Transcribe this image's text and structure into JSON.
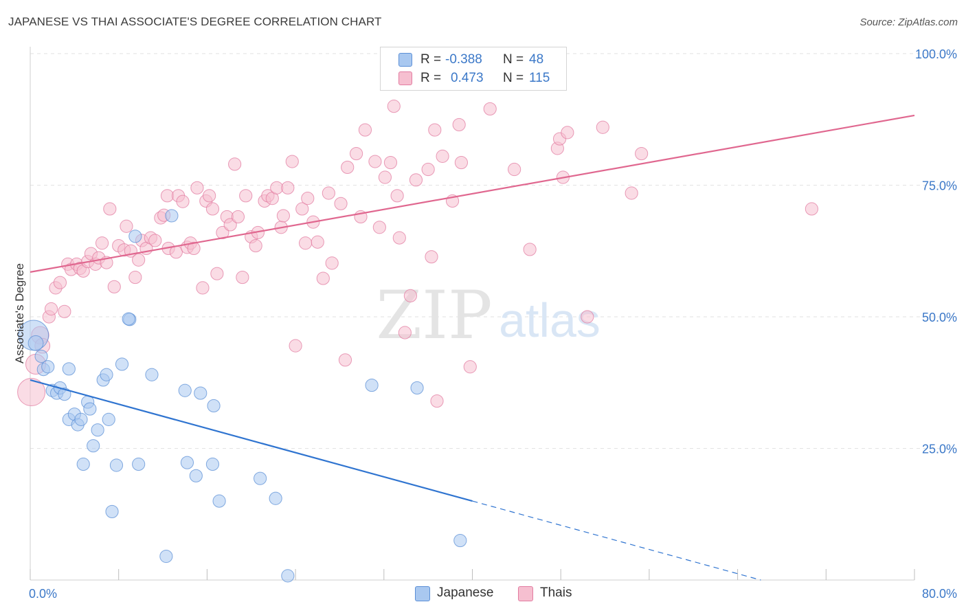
{
  "title": "JAPANESE VS THAI ASSOCIATE'S DEGREE CORRELATION CHART",
  "source": "Source: ZipAtlas.com",
  "watermark": {
    "zip": "ZIP",
    "atlas": "atlas"
  },
  "legend": {
    "rows": [
      {
        "r_label": "R =",
        "r_value": "-0.388",
        "n_label": "N =",
        "n_value": "48",
        "color": "#a9c8f0",
        "border": "#5b8fd6"
      },
      {
        "r_label": "R =",
        "r_value": "0.473",
        "n_label": "N =",
        "n_value": "115",
        "color": "#f6bfd0",
        "border": "#e27ba0"
      }
    ]
  },
  "bottom_legend": [
    {
      "label": "Japanese",
      "color": "#a9c8f0",
      "border": "#5b8fd6"
    },
    {
      "label": "Thais",
      "color": "#f6bfd0",
      "border": "#e27ba0"
    }
  ],
  "chart_data": {
    "type": "scatter",
    "title": "JAPANESE VS THAI ASSOCIATE'S DEGREE CORRELATION CHART",
    "xlabel": "",
    "ylabel": "Associate's Degree",
    "xlim": [
      0,
      80
    ],
    "ylim": [
      0,
      100
    ],
    "x_tick_labels": [
      {
        "value": 0,
        "label": "0.0%"
      },
      {
        "value": 80,
        "label": "80.0%"
      }
    ],
    "y_tick_labels": [
      {
        "value": 25,
        "label": "25.0%"
      },
      {
        "value": 50,
        "label": "50.0%"
      },
      {
        "value": 75,
        "label": "75.0%"
      },
      {
        "value": 100,
        "label": "100.0%"
      }
    ],
    "grid": true,
    "series": [
      {
        "name": "Japanese",
        "color": "#5b8fd6",
        "fill": "#a9c8f0",
        "points": [
          [
            0.3,
            46.5,
            24
          ],
          [
            0.5,
            45,
            12
          ],
          [
            1.0,
            42.5,
            10
          ],
          [
            1.2,
            40,
            10
          ],
          [
            1.6,
            40.5,
            10
          ],
          [
            2.0,
            36,
            10
          ],
          [
            2.4,
            35.5,
            10
          ],
          [
            2.7,
            36.5,
            10
          ],
          [
            3.1,
            35.3,
            10
          ],
          [
            3.5,
            40.1,
            10
          ],
          [
            3.5,
            30.5,
            10
          ],
          [
            4.0,
            31.5,
            10
          ],
          [
            4.3,
            29.5,
            10
          ],
          [
            4.6,
            30.5,
            10
          ],
          [
            4.8,
            22.0,
            10
          ],
          [
            5.2,
            33.8,
            10
          ],
          [
            5.4,
            32.5,
            10
          ],
          [
            5.7,
            25.5,
            10
          ],
          [
            6.1,
            28.5,
            10
          ],
          [
            6.6,
            38.0,
            10
          ],
          [
            6.9,
            39.0,
            10
          ],
          [
            7.1,
            30.5,
            10
          ],
          [
            7.4,
            13.0,
            10
          ],
          [
            7.8,
            21.8,
            10
          ],
          [
            8.3,
            41.0,
            10
          ],
          [
            9.0,
            49.5,
            10
          ],
          [
            8.9,
            49.6,
            10
          ],
          [
            9.5,
            65.3,
            10
          ],
          [
            9.8,
            22.0,
            10
          ],
          [
            11.0,
            39.0,
            10
          ],
          [
            12.3,
            4.5,
            10
          ],
          [
            12.8,
            69.2,
            10
          ],
          [
            14.0,
            36.0,
            10
          ],
          [
            14.2,
            22.3,
            10
          ],
          [
            15.0,
            19.8,
            10
          ],
          [
            15.4,
            35.5,
            10
          ],
          [
            16.5,
            22.0,
            10
          ],
          [
            16.6,
            33.1,
            10
          ],
          [
            17.1,
            15.0,
            10
          ],
          [
            20.8,
            19.3,
            10
          ],
          [
            22.2,
            15.5,
            10
          ],
          [
            23.3,
            0.8,
            10
          ],
          [
            30.9,
            37.0,
            10
          ],
          [
            35.0,
            36.5,
            10
          ],
          [
            38.9,
            7.5,
            10
          ]
        ]
      },
      {
        "name": "Thais",
        "color": "#e27ba0",
        "fill": "#f6bfd0",
        "points": [
          [
            0.1,
            35.7,
            22
          ],
          [
            0.5,
            41.0,
            16
          ],
          [
            0.9,
            46.5,
            14
          ],
          [
            1.1,
            44.5,
            12
          ],
          [
            1.7,
            50.0,
            10
          ],
          [
            1.9,
            51.5,
            10
          ],
          [
            2.3,
            55.5,
            10
          ],
          [
            2.7,
            56.5,
            10
          ],
          [
            3.1,
            51.0,
            10
          ],
          [
            3.4,
            60.0,
            10
          ],
          [
            3.7,
            59.0,
            10
          ],
          [
            4.2,
            60.0,
            10
          ],
          [
            4.5,
            59.2,
            10
          ],
          [
            4.8,
            58.7,
            10
          ],
          [
            5.2,
            60.5,
            10
          ],
          [
            5.5,
            62.0,
            10
          ],
          [
            5.9,
            60.0,
            10
          ],
          [
            6.2,
            61.2,
            10
          ],
          [
            6.5,
            64.0,
            10
          ],
          [
            6.9,
            60.3,
            10
          ],
          [
            7.2,
            70.5,
            10
          ],
          [
            7.6,
            55.7,
            10
          ],
          [
            8.0,
            63.5,
            10
          ],
          [
            8.5,
            62.7,
            10
          ],
          [
            8.7,
            67.2,
            10
          ],
          [
            9.1,
            62.5,
            10
          ],
          [
            9.5,
            57.5,
            10
          ],
          [
            9.8,
            60.8,
            10
          ],
          [
            10.1,
            64.5,
            10
          ],
          [
            10.5,
            63.0,
            10
          ],
          [
            10.9,
            65.0,
            10
          ],
          [
            11.3,
            64.5,
            10
          ],
          [
            11.8,
            68.8,
            10
          ],
          [
            12.1,
            69.3,
            10
          ],
          [
            12.5,
            63.0,
            10
          ],
          [
            12.4,
            73.0,
            10
          ],
          [
            13.2,
            62.3,
            10
          ],
          [
            13.4,
            73.0,
            10
          ],
          [
            13.8,
            71.9,
            10
          ],
          [
            14.2,
            63.2,
            10
          ],
          [
            14.5,
            64.0,
            10
          ],
          [
            14.8,
            63.0,
            10
          ],
          [
            15.1,
            74.5,
            10
          ],
          [
            15.6,
            55.5,
            10
          ],
          [
            15.9,
            72.0,
            10
          ],
          [
            16.2,
            73.0,
            10
          ],
          [
            16.5,
            70.5,
            10
          ],
          [
            16.9,
            58.2,
            10
          ],
          [
            17.4,
            66.0,
            10
          ],
          [
            17.8,
            69.0,
            10
          ],
          [
            18.1,
            67.5,
            10
          ],
          [
            18.5,
            79.0,
            10
          ],
          [
            18.8,
            69.0,
            10
          ],
          [
            19.2,
            57.5,
            10
          ],
          [
            19.5,
            73.0,
            10
          ],
          [
            20.0,
            65.2,
            10
          ],
          [
            20.4,
            63.5,
            10
          ],
          [
            20.6,
            66.0,
            10
          ],
          [
            21.2,
            72.0,
            10
          ],
          [
            21.5,
            73.0,
            10
          ],
          [
            21.9,
            72.5,
            10
          ],
          [
            22.3,
            74.5,
            10
          ],
          [
            22.7,
            67.0,
            10
          ],
          [
            22.9,
            69.2,
            10
          ],
          [
            23.3,
            74.5,
            10
          ],
          [
            23.7,
            79.5,
            10
          ],
          [
            24.0,
            44.5,
            10
          ],
          [
            24.6,
            70.5,
            10
          ],
          [
            24.9,
            64.0,
            10
          ],
          [
            25.1,
            72.5,
            10
          ],
          [
            25.6,
            68.0,
            10
          ],
          [
            26.0,
            64.2,
            10
          ],
          [
            26.5,
            57.3,
            10
          ],
          [
            27.0,
            73.5,
            10
          ],
          [
            27.3,
            60.2,
            10
          ],
          [
            28.1,
            71.5,
            10
          ],
          [
            28.5,
            41.8,
            10
          ],
          [
            28.7,
            78.4,
            10
          ],
          [
            29.5,
            81.0,
            10
          ],
          [
            29.9,
            69.0,
            10
          ],
          [
            30.3,
            85.5,
            10
          ],
          [
            31.2,
            79.5,
            10
          ],
          [
            31.6,
            67.0,
            10
          ],
          [
            32.1,
            76.5,
            10
          ],
          [
            32.6,
            79.3,
            10
          ],
          [
            32.9,
            90.0,
            10
          ],
          [
            33.2,
            73.0,
            10
          ],
          [
            33.4,
            65.0,
            10
          ],
          [
            33.9,
            47.0,
            10
          ],
          [
            34.4,
            54.0,
            10
          ],
          [
            34.9,
            76.0,
            10
          ],
          [
            36.0,
            78.0,
            10
          ],
          [
            36.3,
            61.4,
            10
          ],
          [
            36.6,
            85.5,
            10
          ],
          [
            36.8,
            34.0,
            10
          ],
          [
            37.3,
            80.5,
            10
          ],
          [
            38.2,
            72.0,
            10
          ],
          [
            38.8,
            86.5,
            10
          ],
          [
            39.0,
            79.3,
            10
          ],
          [
            39.8,
            40.5,
            10
          ],
          [
            41.6,
            89.5,
            10
          ],
          [
            43.8,
            78.0,
            10
          ],
          [
            45.2,
            62.8,
            10
          ],
          [
            47.7,
            82.0,
            10
          ],
          [
            47.9,
            83.8,
            10
          ],
          [
            48.2,
            76.5,
            10
          ],
          [
            48.6,
            85.0,
            10
          ],
          [
            50.4,
            50.0,
            10
          ],
          [
            51.8,
            86.0,
            10
          ],
          [
            54.4,
            73.5,
            10
          ],
          [
            55.3,
            81.0,
            10
          ],
          [
            70.7,
            70.5,
            10
          ]
        ]
      }
    ],
    "trendlines": [
      {
        "series": "Japanese",
        "x_solid": [
          0,
          40
        ],
        "x_dashed": [
          40,
          66.1
        ],
        "y_at_0": 38,
        "slope": -0.575,
        "color": "#2f74d0"
      },
      {
        "series": "Thais",
        "x_solid": [
          0,
          80
        ],
        "y_at_0": 58.5,
        "slope": 0.372,
        "color": "#e0678f"
      }
    ]
  }
}
